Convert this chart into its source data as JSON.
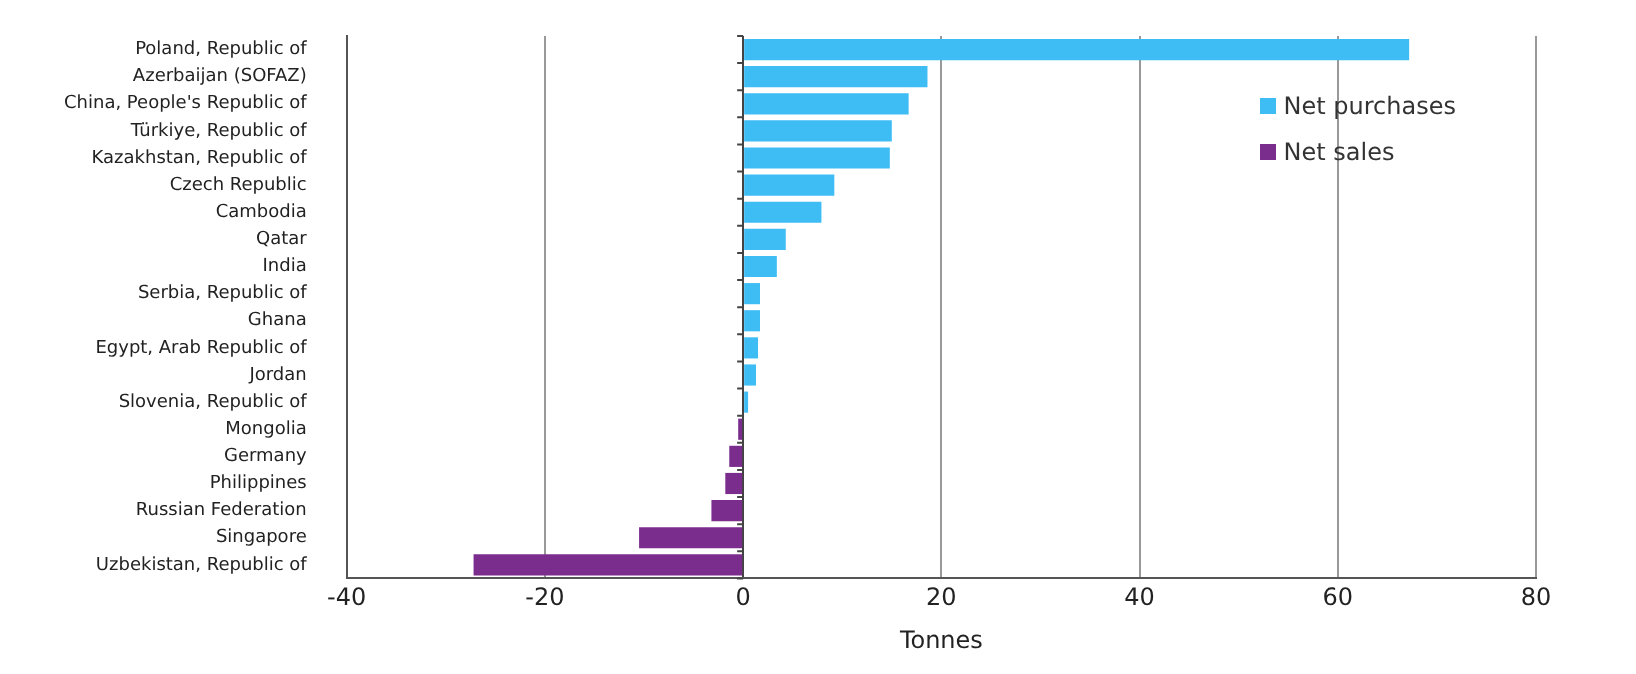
{
  "chart_data": {
    "type": "bar",
    "orientation": "horizontal",
    "xlabel": "Tonnes",
    "categories": [
      "Poland, Republic of",
      "Azerbaijan (SOFAZ)",
      "China, People's Republic of",
      "Türkiye, Republic of",
      "Kazakhstan, Republic of",
      "Czech Republic",
      "Cambodia",
      "Qatar",
      "India",
      "Serbia, Republic of",
      "Ghana",
      "Egypt, Arab Republic of",
      "Jordan",
      "Slovenia, Republic of",
      "Mongolia",
      "Germany",
      "Philippines",
      "Russian Federation",
      "Singapore",
      "Uzbekistan, Republic of"
    ],
    "series": [
      {
        "name": "Net purchases",
        "color": "#3ebdf5",
        "values": [
          67.2,
          18.6,
          16.7,
          15,
          14.8,
          9.2,
          7.9,
          4.3,
          3.4,
          1.7,
          1.7,
          1.5,
          1.3,
          0.5,
          null,
          null,
          null,
          null,
          null,
          null
        ]
      },
      {
        "name": "Net sales",
        "color": "#7b2d8e",
        "values": [
          null,
          null,
          null,
          null,
          null,
          null,
          null,
          null,
          null,
          null,
          null,
          null,
          null,
          null,
          -0.5,
          -1.4,
          -1.8,
          -3.2,
          -10.5,
          -27.2
        ]
      }
    ],
    "xlim": [
      -40,
      80
    ],
    "xticks": [
      -40,
      -20,
      0,
      20,
      40,
      60,
      80
    ],
    "grid": "x",
    "legend": "top right"
  }
}
